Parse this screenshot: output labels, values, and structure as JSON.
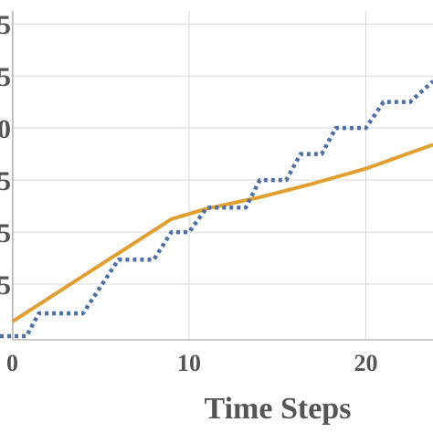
{
  "chart_data": {
    "type": "line",
    "x_label": "Time Steps",
    "xlim": [
      -0.7,
      23.8
    ],
    "xticks": [
      0,
      10,
      20
    ],
    "ylim": [
      0,
      6.25
    ],
    "yticks": [
      {
        "value": 1,
        "label": "5"
      },
      {
        "value": 2,
        "label": "5"
      },
      {
        "value": 3,
        "label": "5"
      },
      {
        "value": 4,
        "label": "0"
      },
      {
        "value": 5,
        "label": "5"
      },
      {
        "value": 6,
        "label": "5"
      }
    ],
    "grid": true,
    "series": [
      {
        "color": "#e0a030",
        "dash": "solid",
        "x": [
          0,
          9,
          11,
          14,
          17,
          20,
          23.8
        ],
        "values": [
          0.28,
          2.25,
          2.45,
          2.67,
          2.93,
          3.22,
          3.68
        ]
      },
      {
        "color": "#4e70a8",
        "dash": "dotted",
        "x": [
          -0.7,
          0.8,
          1.5,
          4,
          6,
          8,
          9,
          10,
          11,
          13.2,
          14,
          15.5,
          16.3,
          17.5,
          18.3,
          20,
          21,
          22.5,
          23.8
        ],
        "values": [
          0,
          0,
          0.44,
          0.44,
          1.47,
          1.47,
          2,
          2,
          2.47,
          2.47,
          3,
          3,
          3.5,
          3.5,
          4,
          4,
          4.5,
          4.5,
          4.9
        ]
      }
    ]
  }
}
